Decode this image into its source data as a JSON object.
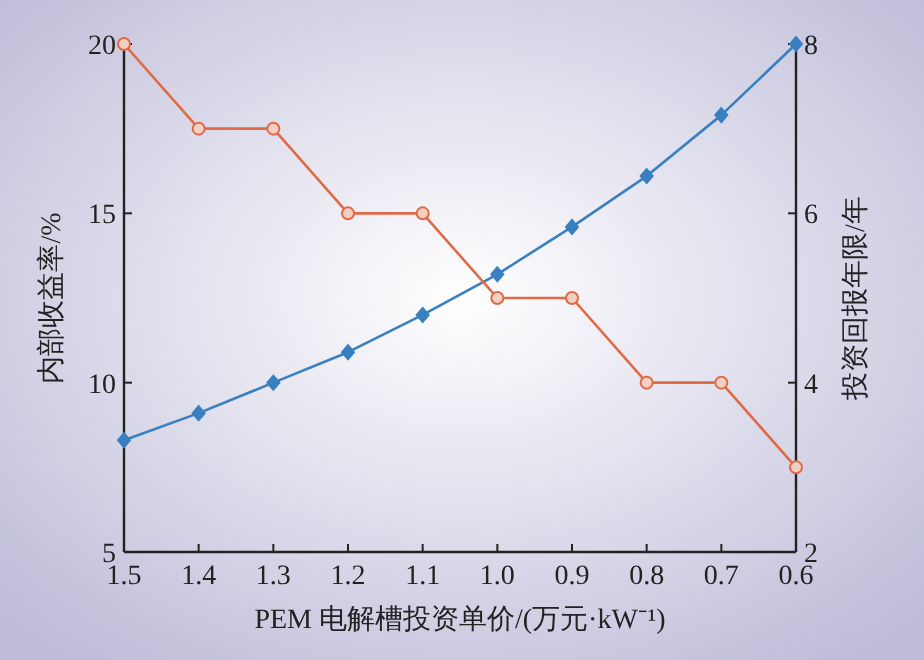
{
  "chart_data": {
    "type": "line",
    "xlabel": "PEM 电解槽投资单价/(万元·kW⁻¹)",
    "ylabel": "内部收益率/%",
    "y2label": "投资回报年限/年",
    "x": [
      1.5,
      1.4,
      1.3,
      1.2,
      1.1,
      1.0,
      0.9,
      0.8,
      0.7,
      0.6
    ],
    "xlim": [
      1.5,
      0.6
    ],
    "xticks": [
      {
        "value": 1.5,
        "label": "1.5"
      },
      {
        "value": 1.4,
        "label": "1.4"
      },
      {
        "value": 1.3,
        "label": "1.3"
      },
      {
        "value": 1.2,
        "label": "1.2"
      },
      {
        "value": 1.1,
        "label": "1.1"
      },
      {
        "value": 1.0,
        "label": "1.0"
      },
      {
        "value": 0.9,
        "label": "0.9"
      },
      {
        "value": 0.8,
        "label": "0.8"
      },
      {
        "value": 0.7,
        "label": "0.7"
      },
      {
        "value": 0.6,
        "label": "0.6"
      }
    ],
    "ylim": [
      5,
      20
    ],
    "yticks": [
      5,
      10,
      15,
      20
    ],
    "y2lim": [
      2,
      8
    ],
    "y2ticks": [
      2,
      4,
      6,
      8
    ],
    "series": [
      {
        "color": "#3a7fc0",
        "marker": "diamond",
        "values": [
          8.3,
          9.1,
          10.0,
          10.9,
          12.0,
          13.2,
          14.6,
          16.1,
          17.9,
          20.0
        ]
      },
      {
        "color": "#e06a45",
        "marker": "circle",
        "axis": "y2",
        "values": [
          8,
          7,
          7,
          6,
          6,
          5,
          5,
          4,
          4,
          3
        ]
      }
    ]
  }
}
